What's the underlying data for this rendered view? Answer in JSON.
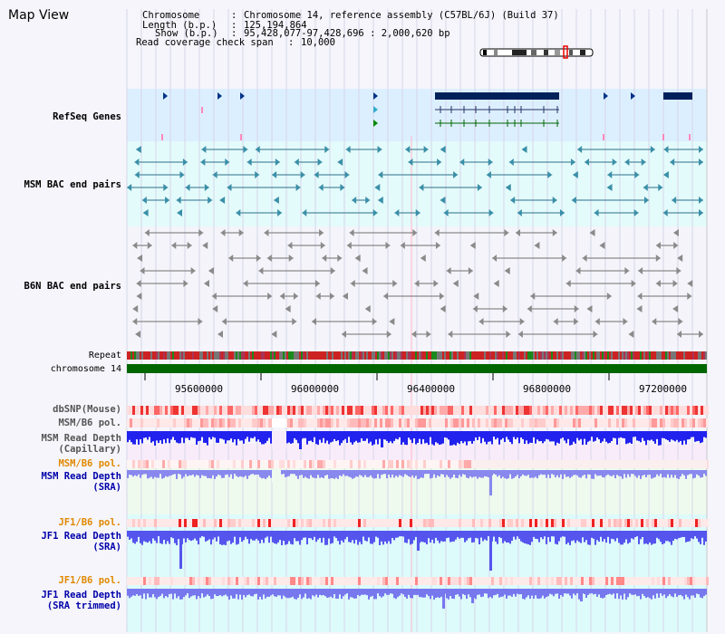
{
  "title": "Map View",
  "header": {
    "chromosome_label": "Chromosome",
    "chromosome_value": "Chromosome 14, reference assembly (C57BL/6J) (Build 37)",
    "length_label": "Length (b.p.)",
    "length_value": "125,194,864",
    "show_label": "Show (b.p.)",
    "show_value": "95,428,077-97,428,696 : 2,000,620 bp",
    "coverage_label": "Read coverage check span",
    "coverage_value": "10,000"
  },
  "tracks": {
    "refseq": "RefSeq Genes",
    "msm_bac": "MSM BAC end pairs",
    "b6n_bac": "B6N BAC end pairs",
    "repeat": "Repeat",
    "chromosome": "chromosome 14",
    "dbsnp": "dbSNP(Mouse)",
    "msm_b6_pol": "MSM/B6 pol.",
    "msm_rd_cap_1": "MSM Read Depth",
    "msm_rd_cap_2": "(Capillary)",
    "msm_msm_b6_pol": "MSM/B6 pol.",
    "msm_rd_sra_1": "MSM Read Depth",
    "msm_rd_sra_2": "(SRA)",
    "jf1_b6_pol_1": "JF1/B6 pol.",
    "jf1_rd_sra_1": "JF1 Read Depth",
    "jf1_rd_sra_2": "(SRA)",
    "jf1_b6_pol_2": "JF1/B6 pol.",
    "jf1_rd_trim_1": "JF1 Read Depth",
    "jf1_rd_trim_2": "(SRA trimmed)"
  },
  "axis": {
    "ticks": [
      "95600000",
      "96000000",
      "96400000",
      "96800000",
      "97200000"
    ]
  },
  "colors": {
    "refseq_text": "#0000aa",
    "msm_bac_text": "#006677",
    "b6n_bac_text": "#555555",
    "orange_text": "#e08800",
    "blue_text": "#0000aa",
    "gene_dark": "#00205a",
    "chromosome_green": "#006600"
  }
}
